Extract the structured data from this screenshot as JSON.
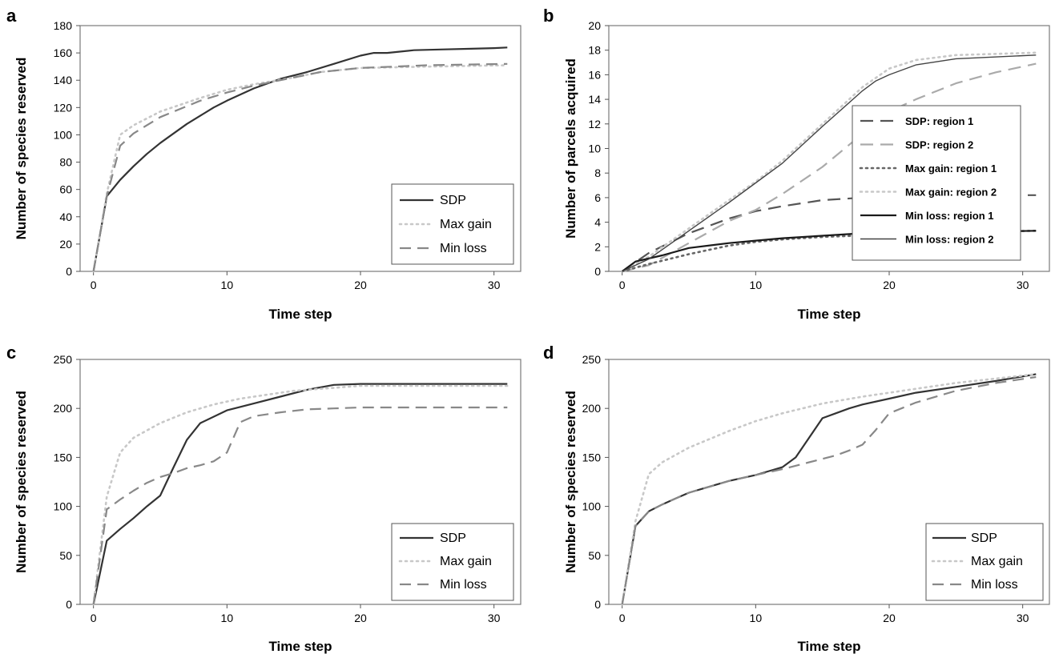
{
  "chart_data": [
    {
      "panel": "a",
      "type": "line",
      "xlabel": "Time step",
      "ylabel": "Number of species reserved",
      "xlim": [
        -1,
        32
      ],
      "ylim": [
        0,
        180
      ],
      "xticks": [
        0,
        10,
        20,
        30
      ],
      "yticks": [
        0,
        20,
        40,
        60,
        80,
        100,
        120,
        140,
        160,
        180
      ],
      "grid": false,
      "legend_position": "bottom-right",
      "series": [
        {
          "name": "SDP",
          "color": "#333333",
          "dash": "solid",
          "x": [
            0,
            1,
            2,
            3,
            4,
            5,
            6,
            7,
            8,
            9,
            10,
            12,
            14,
            16,
            18,
            20,
            21,
            22,
            24,
            26,
            28,
            30,
            31
          ],
          "y": [
            0,
            55,
            67,
            77,
            86,
            94,
            101,
            108,
            114,
            120,
            125,
            134,
            141,
            146,
            152,
            158,
            160,
            160,
            162,
            162.5,
            163,
            163.5,
            164
          ]
        },
        {
          "name": "Max gain",
          "color": "#c8c8c8",
          "dash": "dot",
          "x": [
            0,
            1,
            2,
            3,
            5,
            8,
            10,
            12,
            15,
            17,
            20,
            25,
            31
          ],
          "y": [
            0,
            57,
            100,
            107,
            117,
            127,
            133,
            137,
            142,
            146,
            149,
            150,
            151
          ]
        },
        {
          "name": "Min loss",
          "color": "#888888",
          "dash": "dash",
          "x": [
            0,
            1,
            2,
            3,
            5,
            8,
            10,
            12,
            15,
            17,
            20,
            25,
            31
          ],
          "y": [
            0,
            55,
            92,
            101,
            113,
            125,
            131,
            136,
            142,
            146,
            149,
            151,
            152
          ]
        }
      ]
    },
    {
      "panel": "b",
      "type": "line",
      "xlabel": "Time step",
      "ylabel": "Number of parcels acquired",
      "xlim": [
        -1,
        32
      ],
      "ylim": [
        0,
        20
      ],
      "xticks": [
        0,
        10,
        20,
        30
      ],
      "yticks": [
        0,
        2,
        4,
        6,
        8,
        10,
        12,
        14,
        16,
        18,
        20
      ],
      "grid": false,
      "legend_position": "center-right",
      "series": [
        {
          "name": "SDP: region 1",
          "color": "#555555",
          "dash": "longdash",
          "x": [
            0,
            2,
            5,
            8,
            10,
            12,
            15,
            18,
            20,
            25,
            31
          ],
          "y": [
            0,
            1.5,
            3.1,
            4.3,
            4.9,
            5.3,
            5.8,
            6.0,
            6.1,
            6.2,
            6.2
          ]
        },
        {
          "name": "SDP: region 2",
          "color": "#aaaaaa",
          "dash": "longdash",
          "x": [
            0,
            2,
            5,
            8,
            10,
            12,
            15,
            18,
            20,
            22,
            25,
            28,
            31
          ],
          "y": [
            0,
            0.5,
            2.3,
            4.1,
            5.0,
            6.3,
            8.5,
            11.2,
            13.0,
            14.0,
            15.3,
            16.2,
            16.9
          ]
        },
        {
          "name": "Max gain: region 1",
          "color": "#666666",
          "dash": "dot",
          "x": [
            0,
            2,
            5,
            8,
            10,
            12,
            15,
            20,
            25,
            31
          ],
          "y": [
            0,
            0.6,
            1.4,
            2.1,
            2.4,
            2.6,
            2.8,
            3.0,
            3.2,
            3.3
          ]
        },
        {
          "name": "Max gain: region 2",
          "color": "#c8c8c8",
          "dash": "dot",
          "x": [
            0,
            2,
            5,
            8,
            10,
            12,
            15,
            18,
            20,
            22,
            25,
            31
          ],
          "y": [
            0,
            1.2,
            3.5,
            5.8,
            7.3,
            9.0,
            12.0,
            15.0,
            16.5,
            17.2,
            17.6,
            17.8
          ]
        },
        {
          "name": "Min loss: region 1",
          "color": "#1a1a1a",
          "dash": "solid",
          "x": [
            0,
            1,
            3,
            5,
            8,
            10,
            12,
            15,
            18,
            20,
            25,
            31
          ],
          "y": [
            0,
            0.8,
            1.3,
            1.9,
            2.3,
            2.5,
            2.7,
            2.9,
            3.1,
            3.1,
            3.2,
            3.3
          ]
        },
        {
          "name": "Min loss: region 2",
          "color": "#444444",
          "dash": "solid",
          "thin": true,
          "x": [
            0,
            2,
            5,
            8,
            10,
            12,
            15,
            18,
            19,
            20,
            22,
            25,
            31
          ],
          "y": [
            0,
            1.0,
            3.3,
            5.6,
            7.2,
            8.8,
            11.8,
            14.7,
            15.5,
            16.0,
            16.8,
            17.3,
            17.6
          ]
        }
      ]
    },
    {
      "panel": "c",
      "type": "line",
      "xlabel": "Time step",
      "ylabel": "Number of species reserved",
      "xlim": [
        -1,
        32
      ],
      "ylim": [
        0,
        250
      ],
      "xticks": [
        0,
        10,
        20,
        30
      ],
      "yticks": [
        0,
        50,
        100,
        150,
        200,
        250
      ],
      "grid": false,
      "legend_position": "bottom-right",
      "series": [
        {
          "name": "SDP",
          "color": "#333333",
          "dash": "solid",
          "x": [
            0,
            1,
            2,
            3,
            4,
            5,
            6,
            7,
            8,
            10,
            12,
            14,
            16,
            18,
            20,
            25,
            31
          ],
          "y": [
            0,
            65,
            77,
            88,
            100,
            111,
            140,
            168,
            185,
            198,
            205,
            212,
            219,
            224,
            225,
            225,
            225
          ]
        },
        {
          "name": "Max gain",
          "color": "#c8c8c8",
          "dash": "dot",
          "x": [
            0,
            1,
            2,
            3,
            5,
            7,
            9,
            11,
            13,
            15,
            18,
            20,
            25,
            31
          ],
          "y": [
            0,
            110,
            155,
            170,
            185,
            196,
            204,
            210,
            214,
            218,
            221,
            223,
            223,
            223
          ]
        },
        {
          "name": "Min loss",
          "color": "#888888",
          "dash": "dash",
          "x": [
            0,
            1,
            2,
            3,
            4,
            5,
            6,
            7,
            8,
            9,
            10,
            11,
            12,
            14,
            16,
            18,
            20,
            25,
            31
          ],
          "y": [
            0,
            97,
            107,
            116,
            124,
            130,
            134,
            139,
            142,
            146,
            155,
            186,
            192,
            196,
            199,
            200,
            201,
            201,
            201
          ]
        }
      ]
    },
    {
      "panel": "d",
      "type": "line",
      "xlabel": "Time step",
      "ylabel": "Number of species reserved",
      "xlim": [
        -1,
        32
      ],
      "ylim": [
        0,
        250
      ],
      "xticks": [
        0,
        10,
        20,
        30
      ],
      "yticks": [
        0,
        50,
        100,
        150,
        200,
        250
      ],
      "grid": false,
      "legend_position": "bottom-right",
      "series": [
        {
          "name": "SDP",
          "color": "#333333",
          "dash": "solid",
          "x": [
            0,
            1,
            2,
            3,
            4,
            5,
            6,
            7,
            8,
            10,
            11,
            12,
            13,
            14,
            15,
            16,
            17,
            18,
            20,
            22,
            25,
            28,
            31
          ],
          "y": [
            0,
            80,
            95,
            102,
            108,
            114,
            118,
            122,
            126,
            132,
            136,
            140,
            150,
            170,
            190,
            195,
            200,
            204,
            210,
            216,
            222,
            228,
            235
          ]
        },
        {
          "name": "Max gain",
          "color": "#c8c8c8",
          "dash": "dot",
          "x": [
            0,
            1,
            2,
            3,
            5,
            8,
            10,
            12,
            15,
            18,
            20,
            25,
            31
          ],
          "y": [
            0,
            85,
            133,
            145,
            160,
            177,
            187,
            195,
            205,
            212,
            216,
            226,
            235
          ]
        },
        {
          "name": "Min loss",
          "color": "#888888",
          "dash": "dash",
          "x": [
            0,
            1,
            2,
            3,
            4,
            5,
            6,
            7,
            8,
            10,
            12,
            14,
            16,
            17,
            18,
            19,
            20,
            22,
            25,
            28,
            31
          ],
          "y": [
            0,
            80,
            95,
            102,
            108,
            114,
            118,
            122,
            126,
            132,
            138,
            145,
            152,
            157,
            163,
            178,
            195,
            206,
            218,
            226,
            232
          ]
        }
      ]
    }
  ]
}
